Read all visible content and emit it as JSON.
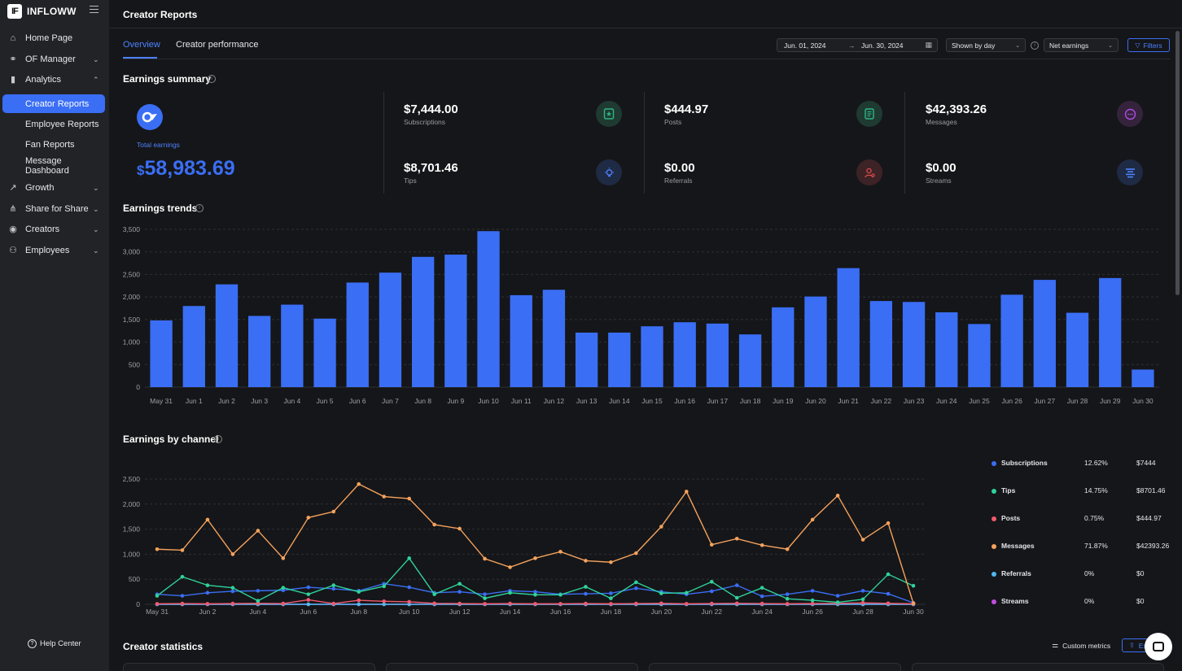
{
  "app": {
    "logo_mark": "IF",
    "name": "INFLOWW"
  },
  "sidebar": {
    "items": [
      {
        "label": "Home Page",
        "icon": "home-icon"
      },
      {
        "label": "OF Manager",
        "icon": "of-manager-icon"
      },
      {
        "label": "Analytics",
        "icon": "bar-chart-icon"
      },
      {
        "label": "Growth",
        "icon": "trend-icon"
      },
      {
        "label": "Share for Share",
        "icon": "share-icon"
      },
      {
        "label": "Creators",
        "icon": "user-circle-icon"
      },
      {
        "label": "Employees",
        "icon": "users-icon"
      }
    ],
    "analytics_sub": [
      "Creator Reports",
      "Employee Reports",
      "Fan Reports",
      "Message Dashboard"
    ],
    "help": "Help Center"
  },
  "header": {
    "title": "Creator Reports"
  },
  "tabs": [
    "Overview",
    "Creator performance"
  ],
  "controls": {
    "date_start": "Jun. 01, 2024",
    "date_end": "Jun. 30, 2024",
    "grouping": "Shown by day",
    "metric": "Net earnings",
    "filters": "Filters"
  },
  "summary": {
    "title": "Earnings summary",
    "total_label": "Total earnings",
    "total_currency": "$",
    "total_value": "58,983.69",
    "metrics": [
      {
        "value": "$7,444.00",
        "label": "Subscriptions",
        "icon": "subscription-star-icon",
        "color": "#2fb487"
      },
      {
        "value": "$444.97",
        "label": "Posts",
        "icon": "post-document-icon",
        "color": "#2fb487"
      },
      {
        "value": "$42,393.26",
        "label": "Messages",
        "icon": "message-bubble-icon",
        "color": "#b04de0"
      },
      {
        "value": "$8,701.46",
        "label": "Tips",
        "icon": "lightbulb-icon",
        "color": "#3a6ef5"
      },
      {
        "value": "$0.00",
        "label": "Referrals",
        "icon": "referral-user-icon",
        "color": "#e04c4c"
      },
      {
        "value": "$0.00",
        "label": "Streams",
        "icon": "streams-icon",
        "color": "#3a6ef5"
      }
    ]
  },
  "chart_data": [
    {
      "type": "bar",
      "title": "Earnings trends",
      "categories": [
        "May 31",
        "Jun 1",
        "Jun 2",
        "Jun 3",
        "Jun 4",
        "Jun 5",
        "Jun 6",
        "Jun 7",
        "Jun 8",
        "Jun 9",
        "Jun 10",
        "Jun 11",
        "Jun 12",
        "Jun 13",
        "Jun 14",
        "Jun 15",
        "Jun 16",
        "Jun 17",
        "Jun 18",
        "Jun 19",
        "Jun 20",
        "Jun 21",
        "Jun 22",
        "Jun 23",
        "Jun 24",
        "Jun 25",
        "Jun 26",
        "Jun 27",
        "Jun 28",
        "Jun 29",
        "Jun 30"
      ],
      "values": [
        1480,
        1800,
        2280,
        1580,
        1830,
        1520,
        2320,
        2540,
        2890,
        2940,
        3460,
        2040,
        2160,
        1210,
        1210,
        1350,
        1440,
        1410,
        1170,
        1770,
        2010,
        2640,
        1910,
        1890,
        1660,
        1400,
        2050,
        2380,
        1650,
        2420,
        390
      ],
      "yticks": [
        0,
        500,
        1000,
        1500,
        2000,
        2500,
        3000,
        3500
      ],
      "ylim": [
        0,
        3500
      ],
      "color": "#3a6ef5",
      "grid": true
    },
    {
      "type": "line",
      "title": "Earnings by channel",
      "x": [
        "May 31",
        "Jun 1",
        "Jun 2",
        "Jun 3",
        "Jun 4",
        "Jun 5",
        "Jun 6",
        "Jun 7",
        "Jun 8",
        "Jun 9",
        "Jun 10",
        "Jun 11",
        "Jun 12",
        "Jun 13",
        "Jun 14",
        "Jun 15",
        "Jun 16",
        "Jun 17",
        "Jun 18",
        "Jun 19",
        "Jun 20",
        "Jun 21",
        "Jun 22",
        "Jun 23",
        "Jun 24",
        "Jun 25",
        "Jun 26",
        "Jun 27",
        "Jun 28",
        "Jun 29",
        "Jun 30"
      ],
      "xticks": [
        "May 31",
        "Jun 2",
        "Jun 4",
        "Jun 6",
        "Jun 8",
        "Jun 10",
        "Jun 12",
        "Jun 14",
        "Jun 16",
        "Jun 18",
        "Jun 20",
        "Jun 22",
        "Jun 24",
        "Jun 26",
        "Jun 28",
        "Jun 30"
      ],
      "yticks": [
        0,
        500,
        1000,
        1500,
        2000,
        2500
      ],
      "ylim": [
        0,
        2500
      ],
      "grid": true,
      "legend_position": "right",
      "series": [
        {
          "name": "Subscriptions",
          "color": "#3a6ef5",
          "pct": "12.62%",
          "amount": "$7444",
          "values": [
            200,
            170,
            230,
            260,
            270,
            280,
            340,
            310,
            270,
            410,
            340,
            230,
            250,
            200,
            270,
            250,
            200,
            210,
            220,
            320,
            250,
            200,
            260,
            380,
            160,
            200,
            270,
            170,
            270,
            210,
            30
          ]
        },
        {
          "name": "Tips",
          "color": "#2fd39a",
          "pct": "14.75%",
          "amount": "$8701.46",
          "values": [
            170,
            550,
            380,
            330,
            70,
            330,
            200,
            380,
            250,
            360,
            920,
            200,
            410,
            120,
            230,
            190,
            190,
            350,
            120,
            440,
            220,
            230,
            450,
            130,
            330,
            110,
            80,
            40,
            100,
            600,
            370
          ]
        },
        {
          "name": "Posts",
          "color": "#f05a6e",
          "pct": "0.75%",
          "amount": "$444.97",
          "values": [
            10,
            15,
            10,
            15,
            20,
            15,
            90,
            15,
            80,
            60,
            50,
            20,
            15,
            10,
            15,
            10,
            10,
            15,
            10,
            15,
            20,
            10,
            15,
            20,
            15,
            10,
            15,
            20,
            30,
            20,
            10
          ]
        },
        {
          "name": "Messages",
          "color": "#f5a25d",
          "pct": "71.87%",
          "amount": "$42393.26",
          "values": [
            1100,
            1080,
            1690,
            1000,
            1470,
            920,
            1730,
            1850,
            2400,
            2150,
            2110,
            1590,
            1510,
            910,
            740,
            920,
            1050,
            870,
            840,
            1020,
            1550,
            2250,
            1190,
            1310,
            1180,
            1100,
            1690,
            2170,
            1290,
            1620,
            20
          ]
        },
        {
          "name": "Referrals",
          "color": "#4fb8f0",
          "pct": "0%",
          "amount": "$0",
          "values": [
            0,
            0,
            0,
            0,
            0,
            0,
            0,
            0,
            0,
            0,
            0,
            0,
            0,
            0,
            0,
            0,
            0,
            0,
            0,
            0,
            0,
            0,
            0,
            0,
            0,
            0,
            0,
            0,
            0,
            0,
            0
          ]
        },
        {
          "name": "Streams",
          "color": "#c24de0",
          "pct": "0%",
          "amount": "$0",
          "values": [
            0,
            0,
            0,
            0,
            0,
            0,
            0,
            0,
            0,
            0,
            0,
            0,
            0,
            0,
            0,
            0,
            0,
            0,
            0,
            0,
            0,
            0,
            0,
            0,
            0,
            0,
            0,
            0,
            0,
            0,
            0
          ]
        }
      ]
    }
  ],
  "trends": {
    "title": "Earnings trends"
  },
  "channel": {
    "title": "Earnings by channel"
  },
  "statistics": {
    "title": "Creator statistics",
    "custom_metrics": "Custom metrics",
    "export": "Ex"
  }
}
